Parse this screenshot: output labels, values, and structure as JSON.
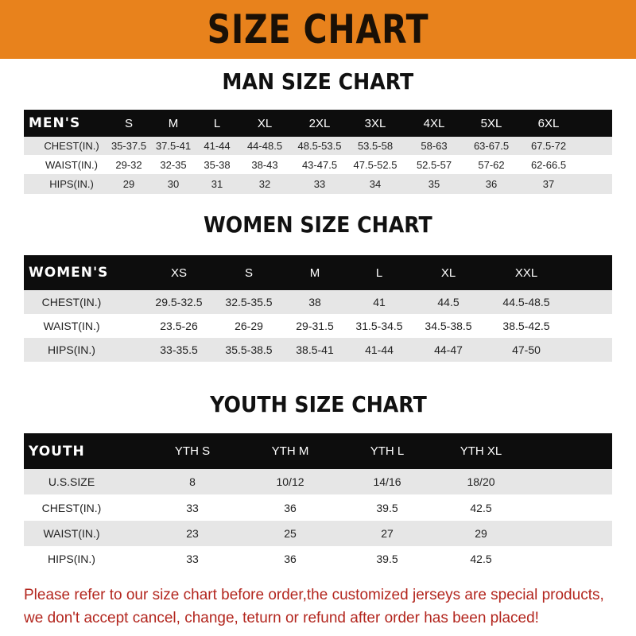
{
  "banner_title": "SIZE CHART",
  "colors": {
    "banner": "#e8821c",
    "header_row": "#0d0d0d",
    "stripe": "#e6e6e6",
    "notice": "#b3261e"
  },
  "men": {
    "title": "MAN SIZE CHART",
    "header": [
      "MEN'S",
      "S",
      "M",
      "L",
      "XL",
      "2XL",
      "3XL",
      "4XL",
      "5XL",
      "6XL"
    ],
    "rows": [
      [
        "CHEST(IN.)",
        "35-37.5",
        "37.5-41",
        "41-44",
        "44-48.5",
        "48.5-53.5",
        "53.5-58",
        "58-63",
        "63-67.5",
        "67.5-72"
      ],
      [
        "WAIST(IN.)",
        "29-32",
        "32-35",
        "35-38",
        "38-43",
        "43-47.5",
        "47.5-52.5",
        "52.5-57",
        "57-62",
        "62-66.5"
      ],
      [
        "HIPS(IN.)",
        "29",
        "30",
        "31",
        "32",
        "33",
        "34",
        "35",
        "36",
        "37"
      ]
    ]
  },
  "women": {
    "title": "WOMEN SIZE CHART",
    "header": [
      "WOMEN'S",
      "XS",
      "S",
      "M",
      "L",
      "XL",
      "XXL"
    ],
    "rows": [
      [
        "CHEST(IN.)",
        "29.5-32.5",
        "32.5-35.5",
        "38",
        "41",
        "44.5",
        "44.5-48.5"
      ],
      [
        "WAIST(IN.)",
        "23.5-26",
        "26-29",
        "29-31.5",
        "31.5-34.5",
        "34.5-38.5",
        "38.5-42.5"
      ],
      [
        "HIPS(IN.)",
        "33-35.5",
        "35.5-38.5",
        "38.5-41",
        "41-44",
        "44-47",
        "47-50"
      ]
    ]
  },
  "youth": {
    "title": "YOUTH SIZE CHART",
    "header": [
      "YOUTH",
      "YTH S",
      "YTH M",
      "YTH L",
      "YTH XL"
    ],
    "rows": [
      [
        "U.S.SIZE",
        "8",
        "10/12",
        "14/16",
        "18/20"
      ],
      [
        "CHEST(IN.)",
        "33",
        "36",
        "39.5",
        "42.5"
      ],
      [
        "WAIST(IN.)",
        "23",
        "25",
        "27",
        "29"
      ],
      [
        "HIPS(IN.)",
        "33",
        "36",
        "39.5",
        "42.5"
      ]
    ]
  },
  "notice": {
    "line1": "Please refer to our size chart before order,the customized jerseys are special products,",
    "line2": "we don't accept cancel, change, teturn or refund after order has been placed!"
  }
}
